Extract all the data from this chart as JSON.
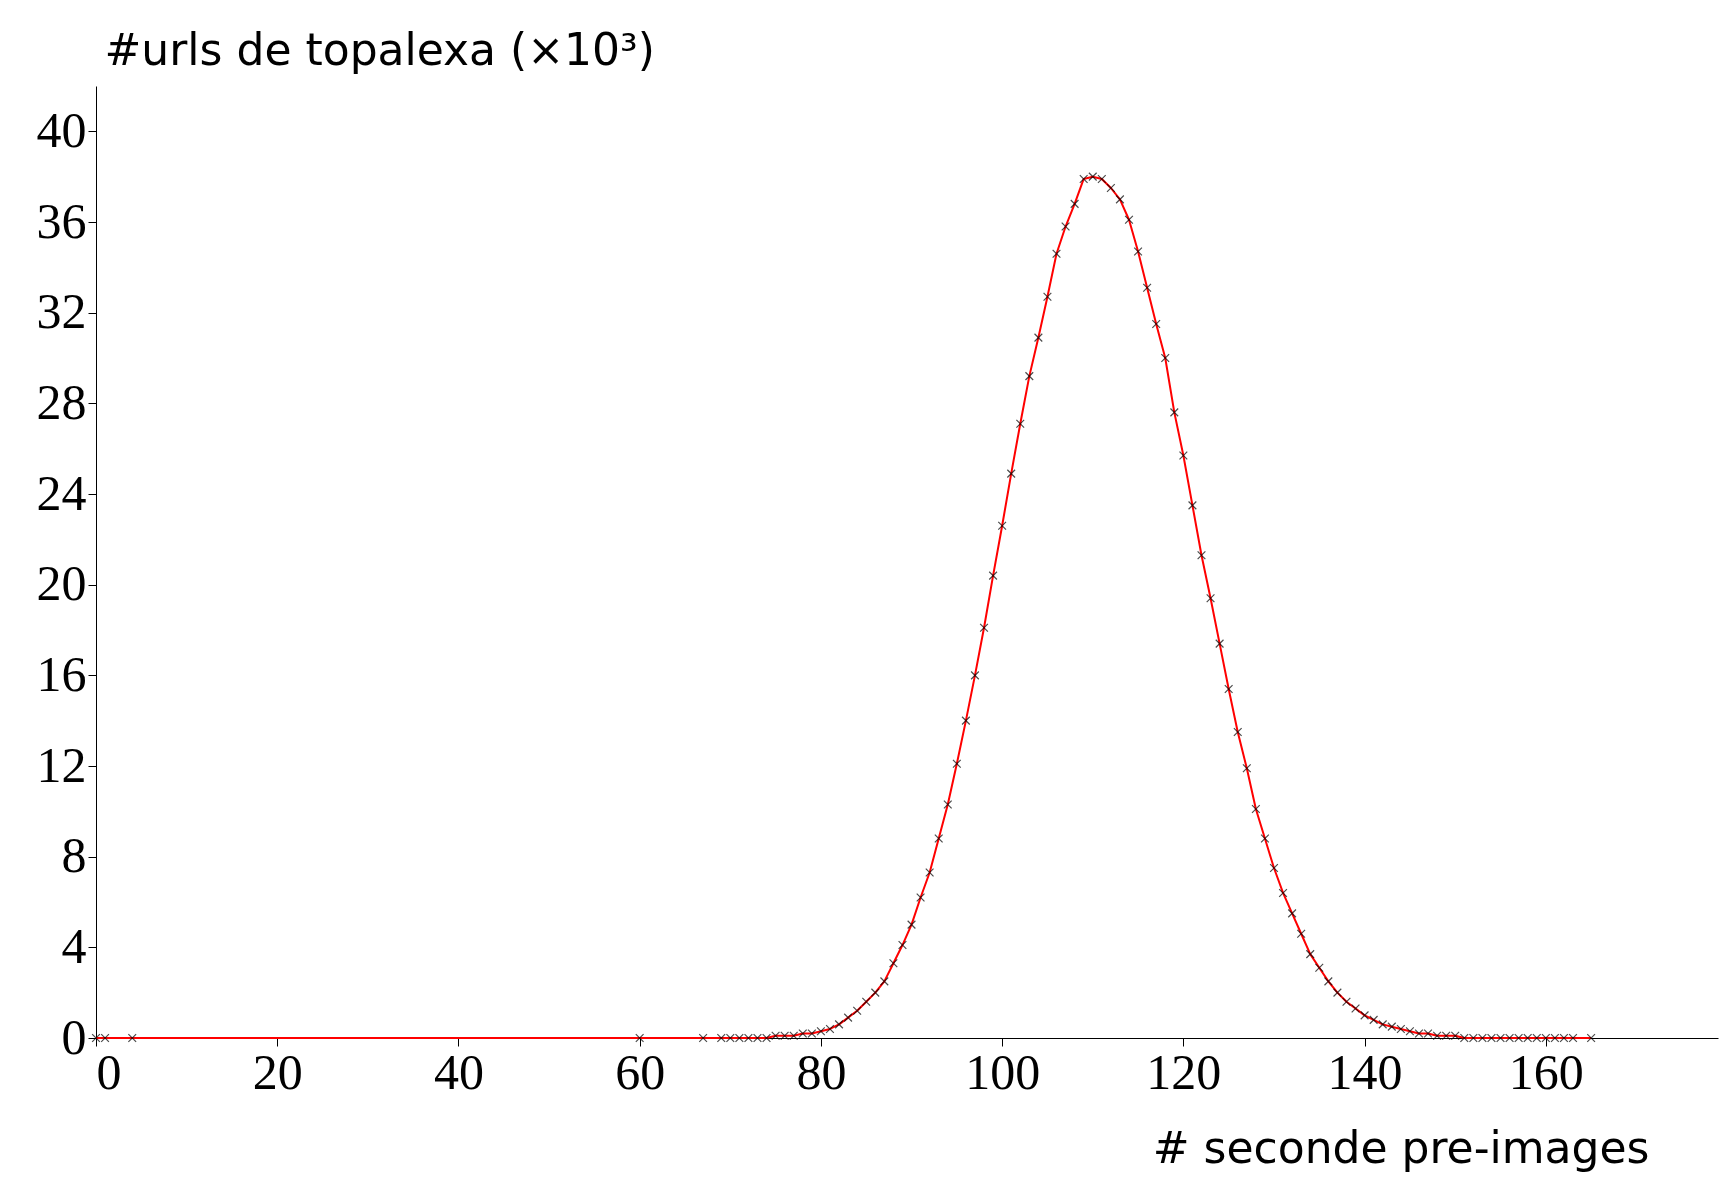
{
  "chart_data": {
    "type": "line",
    "xlabel": "# seconde pre-images",
    "ylabel": "#urls de topalexa (×10³)",
    "x": [
      0,
      1,
      4,
      60,
      67,
      69,
      70,
      71,
      72,
      73,
      74,
      75,
      76,
      77,
      78,
      79,
      80,
      81,
      82,
      83,
      84,
      85,
      86,
      87,
      88,
      89,
      90,
      91,
      92,
      93,
      94,
      95,
      96,
      97,
      98,
      99,
      100,
      101,
      102,
      103,
      104,
      105,
      106,
      107,
      108,
      109,
      110,
      111,
      112,
      113,
      114,
      115,
      116,
      117,
      118,
      119,
      120,
      121,
      122,
      123,
      124,
      125,
      126,
      127,
      128,
      129,
      130,
      131,
      132,
      133,
      134,
      135,
      136,
      137,
      138,
      139,
      140,
      141,
      142,
      143,
      144,
      145,
      146,
      147,
      148,
      149,
      150,
      151,
      152,
      153,
      154,
      155,
      156,
      157,
      158,
      159,
      160,
      161,
      162,
      163,
      165
    ],
    "series": [
      {
        "color": "#ff0000",
        "values": [
          0,
          0,
          0,
          0,
          0,
          0,
          0,
          0,
          0,
          0,
          0,
          0.1,
          0.1,
          0.1,
          0.2,
          0.2,
          0.3,
          0.4,
          0.6,
          0.9,
          1.2,
          1.6,
          2.0,
          2.5,
          3.3,
          4.1,
          5.0,
          6.2,
          7.3,
          8.8,
          10.3,
          12.1,
          14.0,
          16.0,
          18.1,
          20.4,
          22.6,
          24.9,
          27.1,
          29.2,
          30.9,
          32.7,
          34.6,
          35.8,
          36.8,
          37.9,
          38.0,
          37.9,
          37.5,
          37.0,
          36.1,
          34.7,
          33.1,
          31.5,
          30.0,
          27.6,
          25.7,
          23.5,
          21.3,
          19.4,
          17.4,
          15.4,
          13.5,
          11.9,
          10.1,
          8.8,
          7.5,
          6.4,
          5.5,
          4.6,
          3.7,
          3.1,
          2.5,
          2.0,
          1.6,
          1.3,
          1.0,
          0.8,
          0.6,
          0.5,
          0.4,
          0.3,
          0.2,
          0.2,
          0.1,
          0.1,
          0.1,
          0,
          0,
          0,
          0,
          0,
          0,
          0,
          0,
          0,
          0,
          0,
          0,
          0,
          0
        ]
      }
    ],
    "xlim": [
      0,
      179
    ],
    "ylim": [
      0,
      42
    ],
    "xticks": [
      0,
      20,
      40,
      60,
      80,
      100,
      120,
      140,
      160
    ],
    "yticks": [
      0,
      4,
      8,
      12,
      16,
      20,
      24,
      28,
      32,
      36,
      40
    ],
    "grid": false,
    "legend": false,
    "marker": "cross",
    "line_style": "solid"
  }
}
